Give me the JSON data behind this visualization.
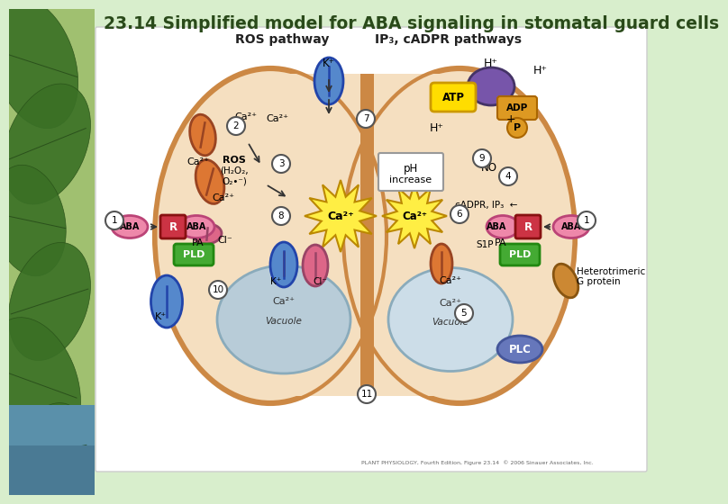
{
  "title": "23.14 Simplified model for ABA signaling in stomatal guard cells",
  "title_fontsize": 13.5,
  "title_color": "#2a4a1a",
  "bg_color": "#d8eecc",
  "left_bg": "#a8c878",
  "water_color": "#88aabb",
  "white_box": "#ffffff",
  "cell_fill": "#f5dfc0",
  "cell_edge": "#cc8844",
  "vacuole_left_fill": "#b8ccd8",
  "vacuole_right_fill": "#ccdde8",
  "orange_ch": "#dd7733",
  "blue_ch": "#5588cc",
  "pink_ch": "#dd6688",
  "red_receptor": "#cc3344",
  "aba_pink": "#ee88aa",
  "pld_green": "#44aa33",
  "starburst": "#ffee44",
  "atp_yellow": "#ffdd00",
  "adp_orange": "#dd9922",
  "purple_oval": "#7755aa",
  "plc_blue": "#6677bb",
  "g_protein_orange": "#cc8833",
  "caption": "PLANT PHYSIOLOGY, Fourth Edition, Figure 23.14  © 2006 Sinauer Associates, Inc."
}
